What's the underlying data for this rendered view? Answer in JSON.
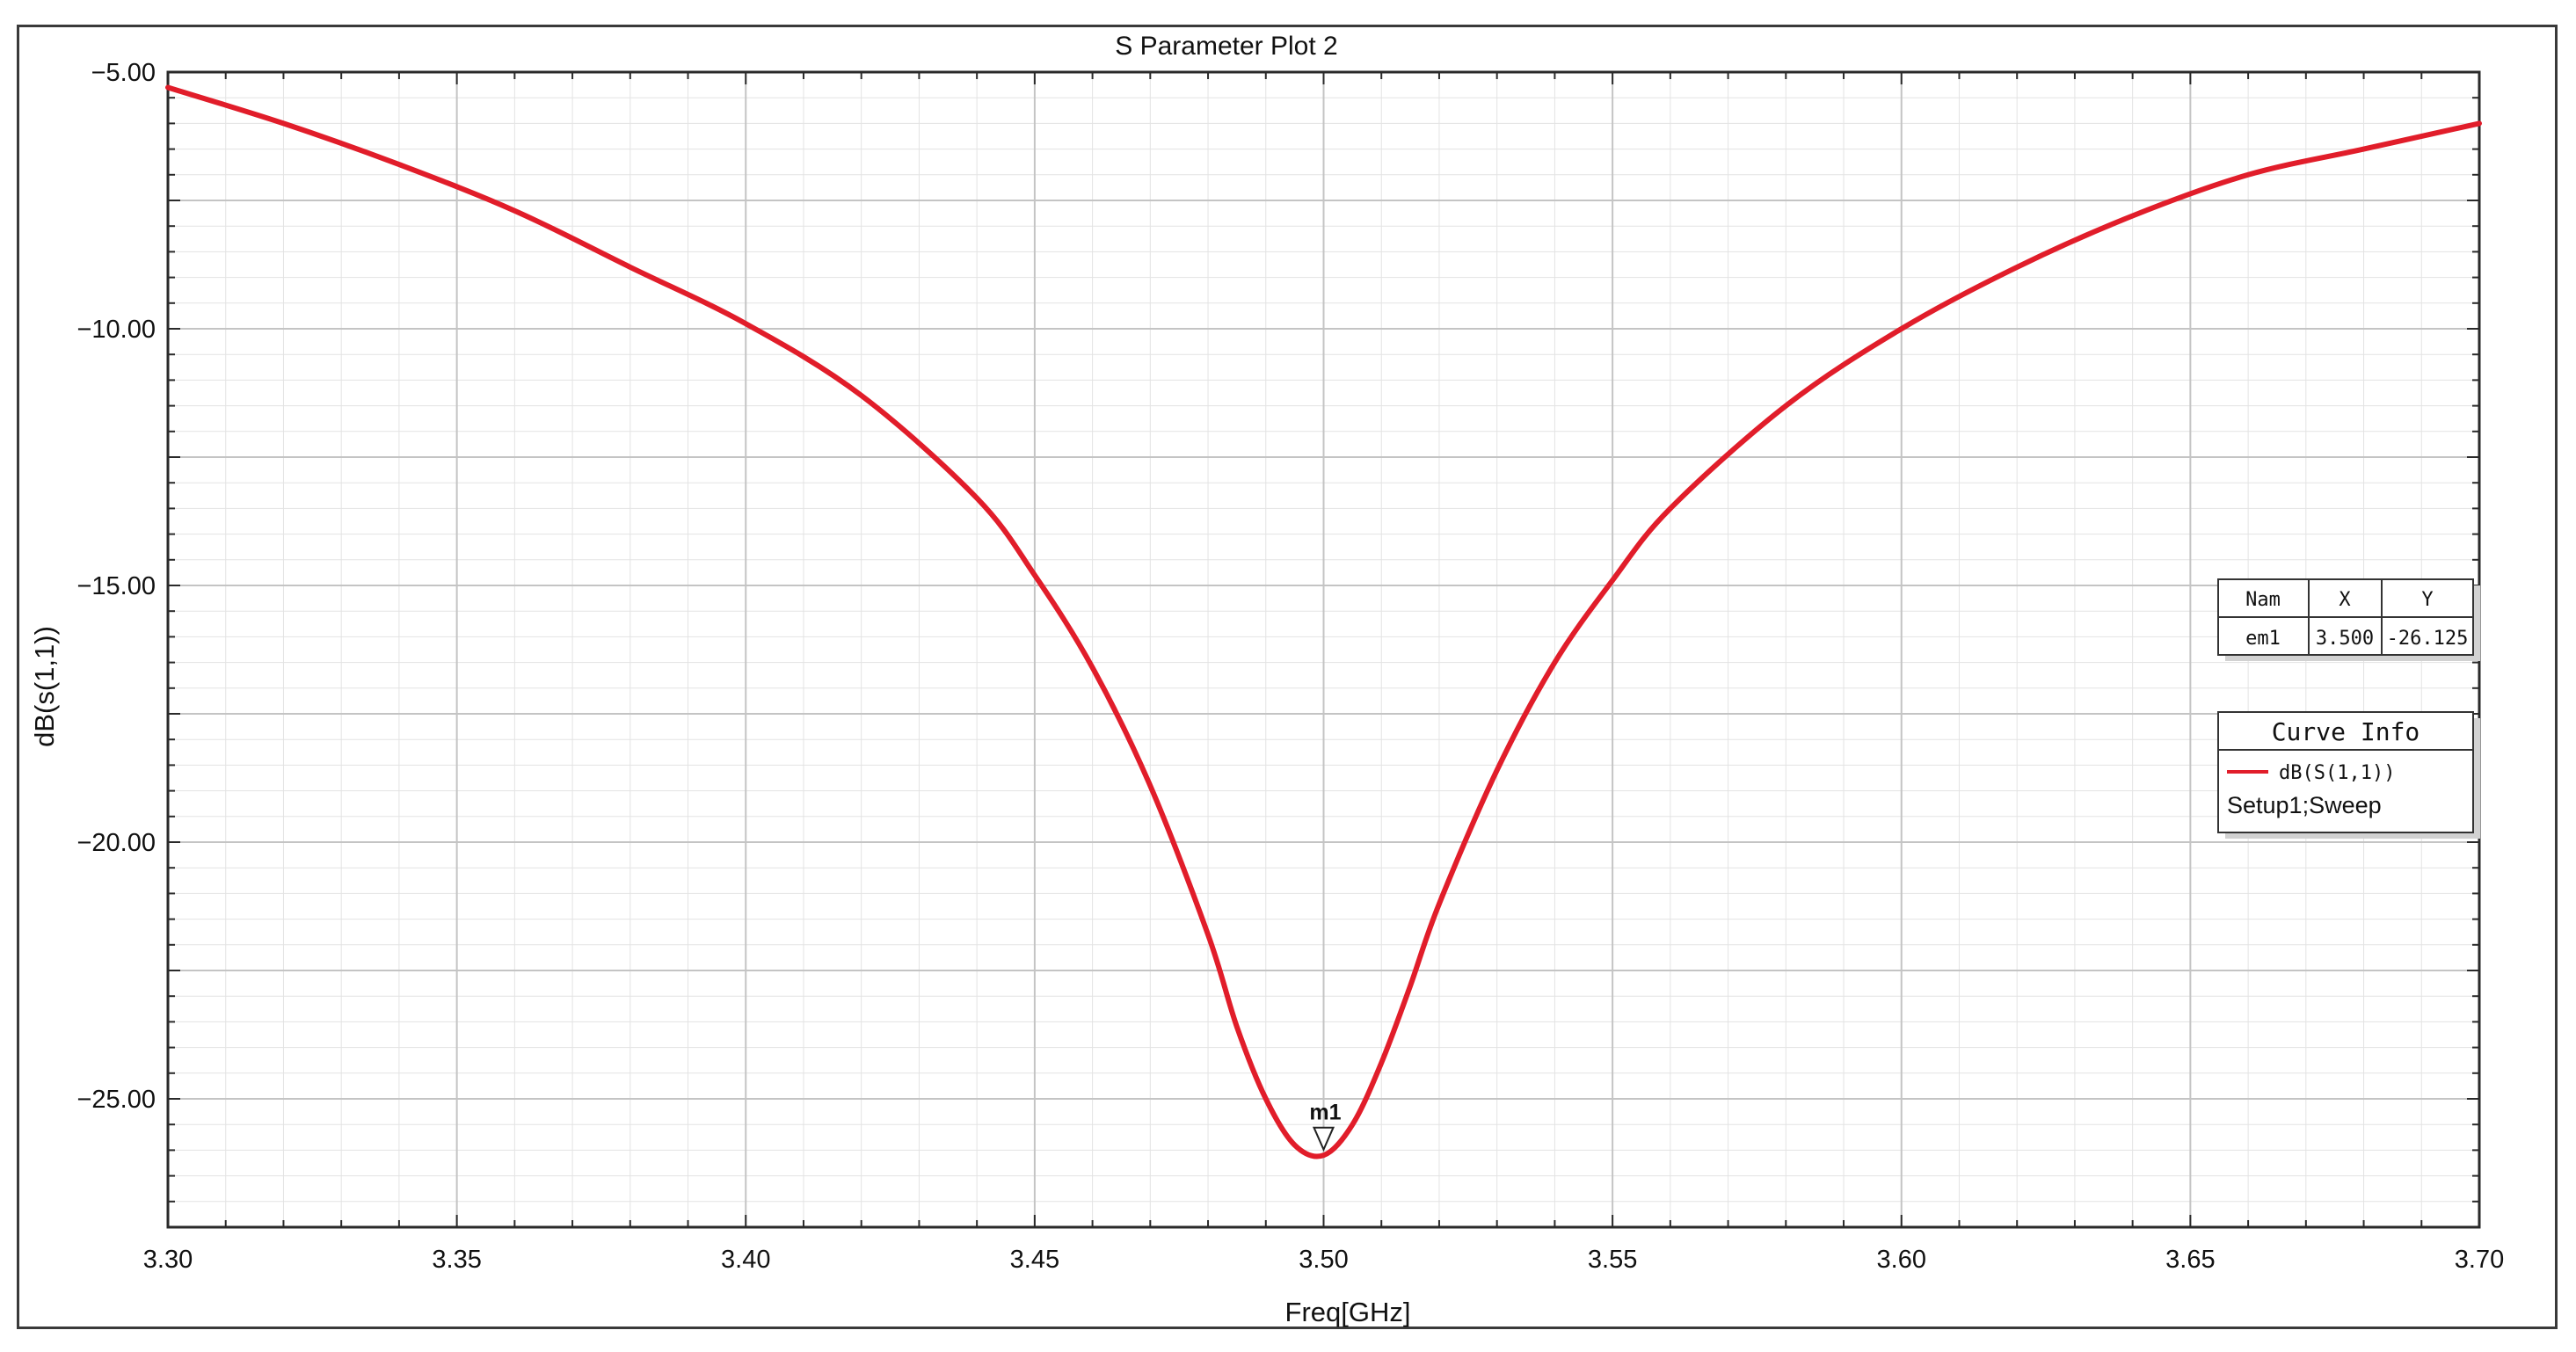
{
  "chart_data": {
    "type": "line",
    "title": "S Parameter Plot 2",
    "xlabel": "Freq[GHz]",
    "ylabel": "dB(s(1,1))",
    "xlim": [
      3.3,
      3.7
    ],
    "ylim": [
      -27.5,
      -5.0
    ],
    "x_ticks": [
      "3.30",
      "3.35",
      "3.40",
      "3.45",
      "3.50",
      "3.55",
      "3.60",
      "3.65",
      "3.70"
    ],
    "x_tick_values": [
      3.3,
      3.35,
      3.4,
      3.45,
      3.5,
      3.55,
      3.6,
      3.65,
      3.7
    ],
    "y_ticks": [
      "-5.00",
      "-10.00",
      "-15.00",
      "-20.00",
      "-25.00"
    ],
    "y_tick_values": [
      -5,
      -10,
      -15,
      -20,
      -25
    ],
    "grid": true,
    "series": [
      {
        "name": "dB(S(1,1))",
        "color": "#e11d2a",
        "x": [
          3.3,
          3.32,
          3.34,
          3.36,
          3.38,
          3.4,
          3.42,
          3.44,
          3.45,
          3.46,
          3.47,
          3.48,
          3.485,
          3.49,
          3.495,
          3.5,
          3.505,
          3.51,
          3.515,
          3.52,
          3.53,
          3.54,
          3.55,
          3.56,
          3.58,
          3.6,
          3.62,
          3.64,
          3.66,
          3.68,
          3.7
        ],
        "y": [
          -5.3,
          -6.0,
          -6.8,
          -7.7,
          -8.8,
          -9.9,
          -11.3,
          -13.3,
          -14.8,
          -16.6,
          -18.9,
          -21.8,
          -23.6,
          -25.0,
          -25.9,
          -26.1,
          -25.5,
          -24.3,
          -22.8,
          -21.2,
          -18.6,
          -16.5,
          -14.9,
          -13.5,
          -11.5,
          -10.0,
          -8.8,
          -7.8,
          -7.0,
          -6.5,
          -6.0
        ]
      }
    ],
    "marker": {
      "label": "m1",
      "x": 3.5,
      "y": -26.125
    },
    "marker_table": {
      "headers": [
        "Nam",
        "X",
        "Y"
      ],
      "rows": [
        [
          "em1",
          "3.500",
          "-26.125"
        ]
      ]
    },
    "legend": {
      "title": "Curve Info",
      "entry_name": "dB(S(1,1))",
      "entry_setup": "Setup1;Sweep",
      "placement": "right"
    },
    "colors": {
      "curve": "#e11d2a",
      "major_grid": "#c4c4c4",
      "minor_grid": "#e3e3e3",
      "axis": "#2a2a2a"
    }
  }
}
